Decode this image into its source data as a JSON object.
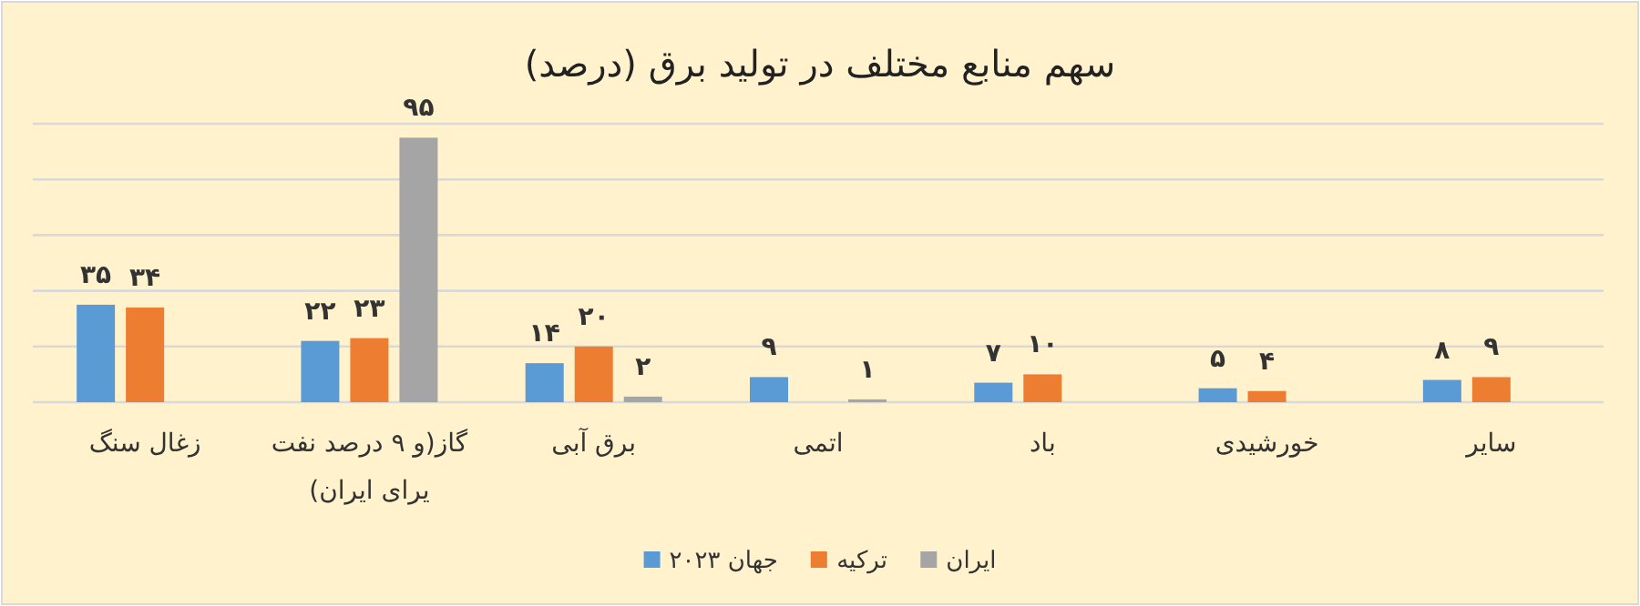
{
  "chart_data": {
    "type": "bar",
    "title": "سهم منابع مختلف در تولید برق (درصد)",
    "categories": [
      "زغال سنگ",
      "گاز(و ۹ درصد نفت یرای ایران)",
      "برق آبی",
      "اتمی",
      "باد",
      "خورشیدی",
      "سایر"
    ],
    "series": [
      {
        "name": "جهان ۲۰۲۳",
        "color": "#5b9bd5",
        "values": [
          35,
          22,
          14,
          9,
          7,
          5,
          8
        ],
        "value_labels": [
          "۳۵",
          "۲۲",
          "۱۴",
          "۹",
          "۷",
          "۵",
          "۸"
        ]
      },
      {
        "name": "ترکیه",
        "color": "#ed7d31",
        "values": [
          34,
          23,
          20,
          null,
          10,
          4,
          9
        ],
        "value_labels": [
          "۳۴",
          "۲۳",
          "۲۰",
          null,
          "۱۰",
          "۴",
          "۹"
        ]
      },
      {
        "name": "ایران",
        "color": "#a5a5a5",
        "values": [
          null,
          95,
          2,
          1,
          null,
          null,
          null
        ],
        "value_labels": [
          null,
          "۹۵",
          "۲",
          "۱",
          null,
          null,
          null
        ]
      }
    ],
    "ylim": [
      0,
      100
    ],
    "yticks": [
      {
        "value": 0,
        "label": null
      },
      {
        "value": 20,
        "label": null
      },
      {
        "value": 40,
        "label": null
      },
      {
        "value": 60,
        "label": null
      },
      {
        "value": 80,
        "label": null
      },
      {
        "value": 100,
        "label": null
      }
    ],
    "grid": "y",
    "legend": "bottom"
  }
}
